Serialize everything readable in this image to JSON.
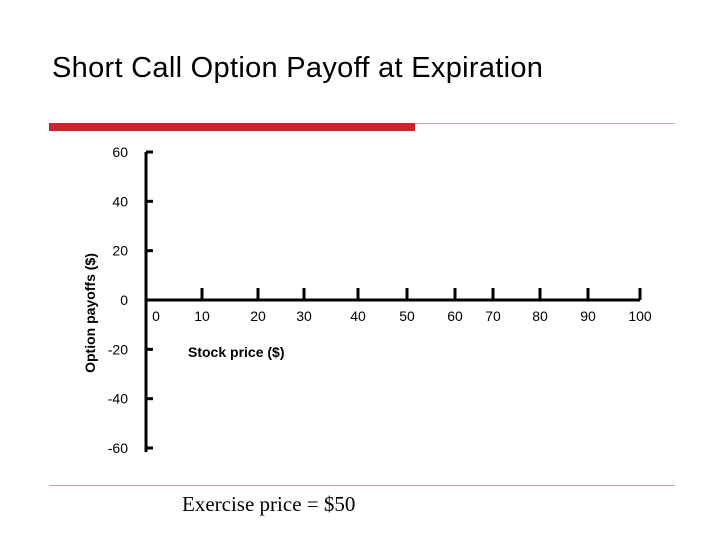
{
  "slide": {
    "title": "Short Call Option Payoff at Expiration",
    "note": "Exercise price = $50",
    "accent_color": "#d0202a"
  },
  "chart_data": {
    "type": "line",
    "title": "Short Call Option Payoff at Expiration",
    "xlabel": "Stock price ($)",
    "ylabel": "Option payoffs ($)",
    "x_ticks": [
      0,
      10,
      20,
      30,
      40,
      50,
      60,
      70,
      80,
      90,
      100
    ],
    "y_ticks": [
      60,
      40,
      20,
      0,
      -20,
      -40,
      -60
    ],
    "xlim": [
      0,
      100
    ],
    "ylim": [
      -60,
      60
    ],
    "grid": false,
    "series": []
  }
}
